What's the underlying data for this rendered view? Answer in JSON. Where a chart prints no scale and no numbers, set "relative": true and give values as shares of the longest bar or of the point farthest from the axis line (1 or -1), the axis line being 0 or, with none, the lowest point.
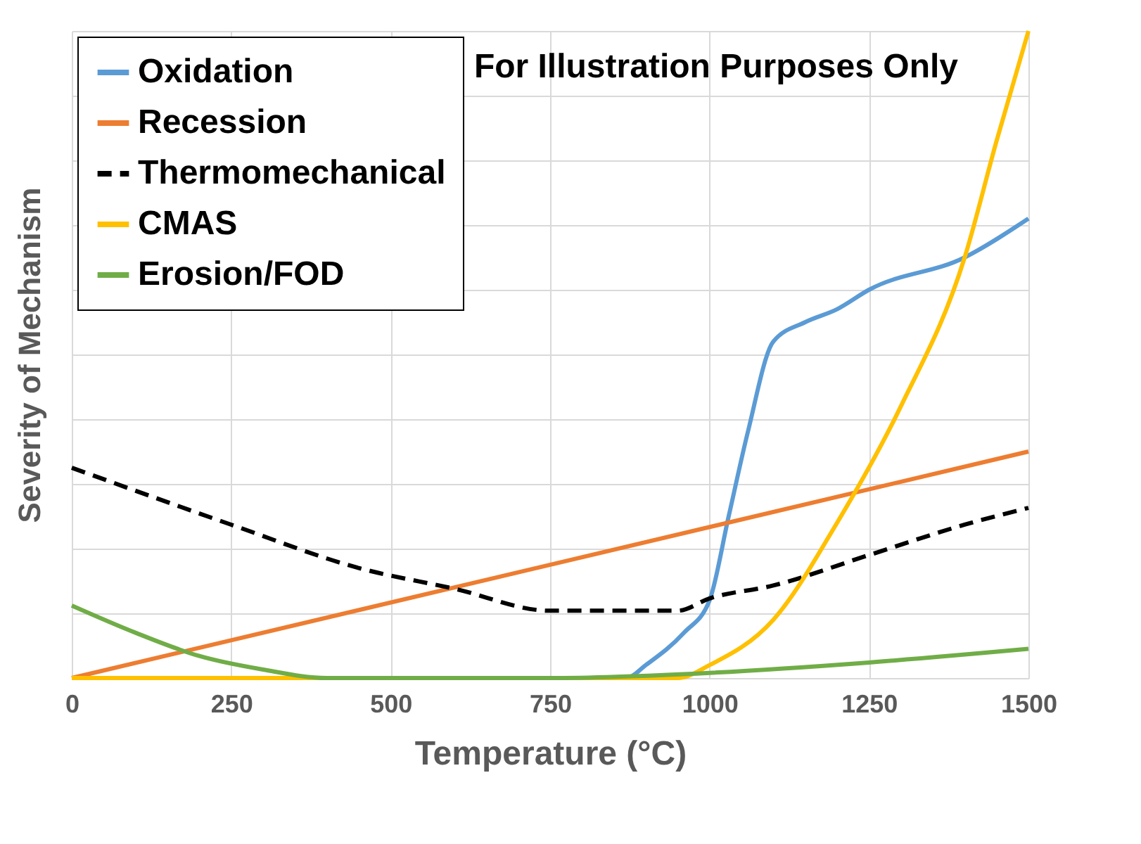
{
  "chart_data": {
    "type": "line",
    "relative": true,
    "xlabel": "Temperature (°C)",
    "ylabel": "Severity of Mechanism",
    "xlim": [
      0,
      1500
    ],
    "xticks": [
      0,
      250,
      500,
      750,
      1000,
      1250,
      1500
    ],
    "grid": true,
    "legend": "top left",
    "annotations": [
      "For Illustration Purposes Only"
    ],
    "series": [
      {
        "name": "Oxidation",
        "color": "#5b9bd5",
        "x": [
          0,
          870,
          900,
          960,
          1000,
          1030,
          1060,
          1100,
          1150,
          1200,
          1250,
          1400,
          1500
        ],
        "values": [
          0,
          0,
          0.02,
          0.07,
          0.12,
          0.25,
          0.38,
          0.52,
          0.55,
          0.57,
          0.6,
          0.65,
          0.71
        ]
      },
      {
        "name": "Recession",
        "color": "#ed7d31",
        "x": [
          0,
          1500
        ],
        "values": [
          0,
          0.35
        ]
      },
      {
        "name": "Thermomechanical",
        "color": "#000000",
        "line_style": "dashed",
        "x": [
          0,
          250,
          450,
          600,
          750,
          950,
          1000,
          1100,
          1250,
          1400,
          1500
        ],
        "values": [
          0.325,
          0.237,
          0.17,
          0.138,
          0.104,
          0.104,
          0.123,
          0.143,
          0.19,
          0.237,
          0.263
        ]
      },
      {
        "name": "CMAS",
        "color": "#ffc000",
        "x": [
          0,
          950,
          1000,
          1100,
          1200,
          1300,
          1400,
          1450,
          1500
        ],
        "values": [
          0,
          0,
          0.02,
          0.09,
          0.24,
          0.42,
          0.65,
          0.83,
          1
        ]
      },
      {
        "name": "Erosion/FOD",
        "color": "#70ad47",
        "x": [
          0,
          100,
          200,
          300,
          400,
          750,
          1000,
          1250,
          1500
        ],
        "values": [
          0.112,
          0.07,
          0.034,
          0.013,
          0,
          0,
          0.008,
          0.024,
          0.045
        ]
      }
    ]
  }
}
